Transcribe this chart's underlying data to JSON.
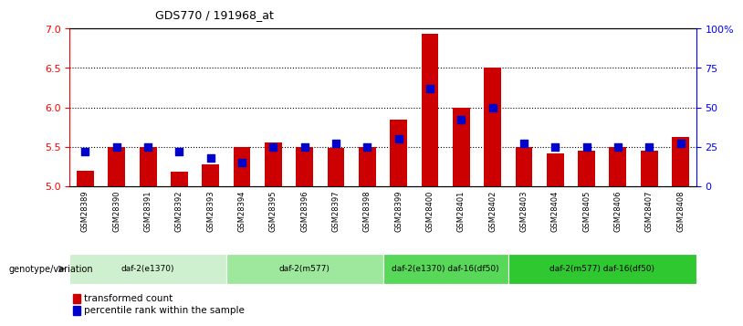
{
  "title": "GDS770 / 191968_at",
  "categories": [
    "GSM28389",
    "GSM28390",
    "GSM28391",
    "GSM28392",
    "GSM28393",
    "GSM28394",
    "GSM28395",
    "GSM28396",
    "GSM28397",
    "GSM28398",
    "GSM28399",
    "GSM28400",
    "GSM28401",
    "GSM28402",
    "GSM28403",
    "GSM28404",
    "GSM28405",
    "GSM28406",
    "GSM28407",
    "GSM28408"
  ],
  "red_values": [
    5.2,
    5.5,
    5.5,
    5.18,
    5.28,
    5.5,
    5.55,
    5.5,
    5.48,
    5.5,
    5.85,
    6.93,
    6.0,
    6.5,
    5.5,
    5.42,
    5.45,
    5.5,
    5.45,
    5.62
  ],
  "blue_values": [
    22,
    25,
    25,
    22,
    18,
    15,
    25,
    25,
    27,
    25,
    30,
    62,
    42,
    50,
    27,
    25,
    25,
    25,
    25,
    27
  ],
  "ylim_left": [
    5.0,
    7.0
  ],
  "ylim_right": [
    0,
    100
  ],
  "yticks_left": [
    5.0,
    5.5,
    6.0,
    6.5,
    7.0
  ],
  "yticks_right": [
    0,
    25,
    50,
    75,
    100
  ],
  "ytick_labels_right": [
    "0",
    "25",
    "50",
    "75",
    "100%"
  ],
  "grid_lines": [
    5.5,
    6.0,
    6.5
  ],
  "groups": [
    {
      "label": "daf-2(e1370)",
      "start": 0,
      "end": 5,
      "color": "#cef0ce"
    },
    {
      "label": "daf-2(m577)",
      "start": 5,
      "end": 10,
      "color": "#9ee89e"
    },
    {
      "label": "daf-2(e1370) daf-16(df50)",
      "start": 10,
      "end": 14,
      "color": "#58d858"
    },
    {
      "label": "daf-2(m577) daf-16(df50)",
      "start": 14,
      "end": 20,
      "color": "#30c830"
    }
  ],
  "bar_color_red": "#cc0000",
  "bar_color_blue": "#0000cc",
  "bg_color": "#ffffff",
  "tick_area_color": "#c8c8c8",
  "legend_red": "transformed count",
  "legend_blue": "percentile rank within the sample",
  "genotype_label": "genotype/variation"
}
